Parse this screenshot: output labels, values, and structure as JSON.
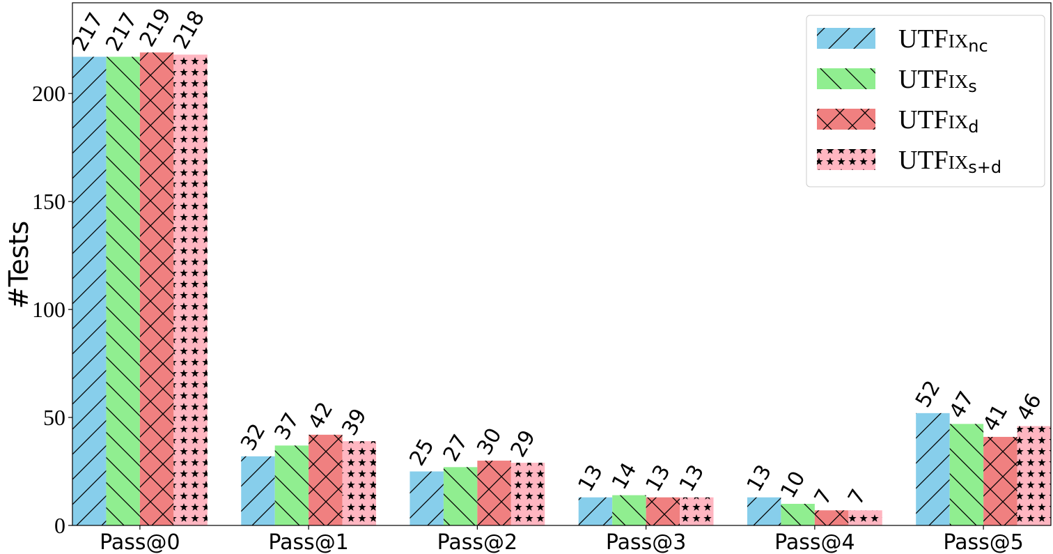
{
  "chart_data": {
    "type": "bar",
    "y_label": "#Tests",
    "categories": [
      "Pass@0",
      "Pass@1",
      "Pass@2",
      "Pass@3",
      "Pass@4",
      "Pass@5"
    ],
    "series": [
      {
        "name": "UTFix",
        "subscript": "nc",
        "color": "#87ceeb",
        "hatch": "/",
        "values": [
          217,
          32,
          25,
          13,
          13,
          52
        ]
      },
      {
        "name": "UTFix",
        "subscript": "s",
        "color": "#90ee90",
        "hatch": "\\",
        "values": [
          217,
          37,
          27,
          14,
          10,
          47
        ]
      },
      {
        "name": "UTFix",
        "subscript": "d",
        "color": "#f08080",
        "hatch": "x",
        "values": [
          219,
          42,
          30,
          13,
          7,
          41
        ]
      },
      {
        "name": "UTFix",
        "subscript": "s+d",
        "color": "#ffb6c1",
        "hatch": "*",
        "values": [
          218,
          39,
          29,
          13,
          7,
          46
        ]
      }
    ],
    "ylim": [
      0,
      242
    ],
    "yticks": [
      0,
      50,
      100,
      150,
      200
    ],
    "legend": "upper right"
  }
}
